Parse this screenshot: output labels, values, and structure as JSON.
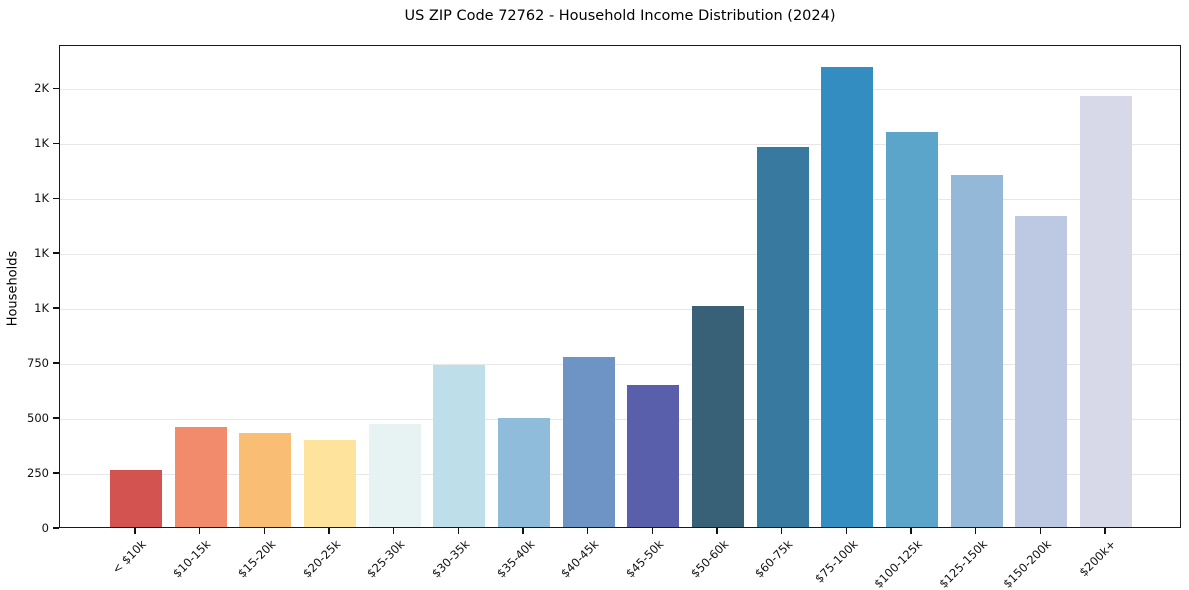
{
  "chart_data": {
    "type": "bar",
    "title": "US ZIP Code 72762 - Household Income Distribution (2024)",
    "xlabel": "",
    "ylabel": "Households",
    "categories": [
      "< $10k",
      "$10-15k",
      "$15-20k",
      "$20-25k",
      "$25-30k",
      "$30-35k",
      "$35-40k",
      "$40-45k",
      "$45-50k",
      "$50-60k",
      "$60-75k",
      "$75-100k",
      "$100-125k",
      "$125-150k",
      "$150-200k",
      "$200k+"
    ],
    "values": [
      258,
      457,
      428,
      394,
      468,
      739,
      497,
      772,
      648,
      1004,
      1728,
      2092,
      1799,
      1603,
      1417,
      1960
    ],
    "bar_colors": [
      "#d25350",
      "#f28a6c",
      "#fabd74",
      "#fde39b",
      "#e7f2f2",
      "#bedfe9",
      "#90bcdb",
      "#6e94c6",
      "#5a5fab",
      "#386076",
      "#3879a0",
      "#348dc1",
      "#5ca5ca",
      "#93b8d8",
      "#bdc9e2",
      "#d7d9e8"
    ],
    "ylim": [
      0,
      2197
    ],
    "yticks": [
      {
        "value": 0,
        "label": "0"
      },
      {
        "value": 250,
        "label": "250"
      },
      {
        "value": 500,
        "label": "500"
      },
      {
        "value": 750,
        "label": "750"
      },
      {
        "value": 1000,
        "label": "1K"
      },
      {
        "value": 1250,
        "label": "1K"
      },
      {
        "value": 1500,
        "label": "1K"
      },
      {
        "value": 1750,
        "label": "1K"
      },
      {
        "value": 2000,
        "label": "2K"
      }
    ],
    "grid": "horizontal",
    "legend": "none",
    "x_tick_rotation_deg": 45,
    "frame_color": "#1a1a1a",
    "gridline_color": "#e7e7e7",
    "background_color": "#ffffff"
  }
}
